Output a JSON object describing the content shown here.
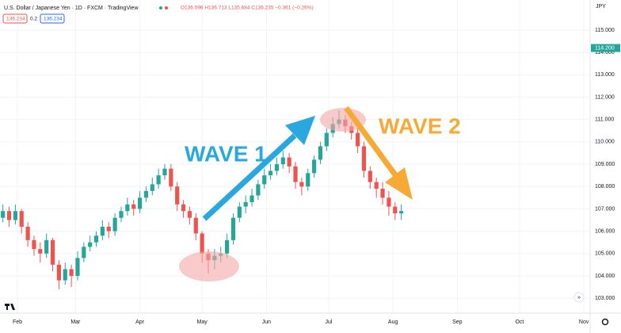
{
  "header": {
    "title": "U.S. Dollar / Japanese Yen · 1D · FXCM · TradingView",
    "ohlc": "O136.596 H136.713 L135.684 C136.235 −0.361 (−0.26%)",
    "sell": "136.234",
    "spread": "0.2",
    "buy": "136.234"
  },
  "chart_data": {
    "type": "candlestick",
    "currency": "JPY",
    "annotations": [
      "WAVE 1",
      "WAVE 2"
    ],
    "price_tag": {
      "value": 114.2,
      "label": "114.200"
    },
    "up_color": "#26a69a",
    "down_color": "#ef5350",
    "grid": true,
    "xlim": [
      -8.4,
      276
    ],
    "xticks": [
      {
        "value": 0,
        "label": "Feb"
      },
      {
        "value": 28,
        "label": "Mar"
      },
      {
        "value": 59,
        "label": "Apr"
      },
      {
        "value": 89,
        "label": "May"
      },
      {
        "value": 120,
        "label": "Jun"
      },
      {
        "value": 150,
        "label": "Jul"
      },
      {
        "value": 181,
        "label": "Aug"
      },
      {
        "value": 212,
        "label": "Sep"
      },
      {
        "value": 242,
        "label": "Oct"
      },
      {
        "value": 273,
        "label": "Nov"
      }
    ],
    "ylim": [
      102.33,
      116.35
    ],
    "yticks": [
      {
        "value": 103,
        "label": "103.000"
      },
      {
        "value": 104,
        "label": "104.000"
      },
      {
        "value": 105,
        "label": "105.000"
      },
      {
        "value": 106,
        "label": "106.000"
      },
      {
        "value": 107,
        "label": "107.000"
      },
      {
        "value": 108,
        "label": "108.000"
      },
      {
        "value": 109,
        "label": "109.000"
      },
      {
        "value": 110,
        "label": "110.000"
      },
      {
        "value": 111,
        "label": "111.000"
      },
      {
        "value": 112,
        "label": "112.000"
      },
      {
        "value": 113,
        "label": "113.000"
      },
      {
        "value": 114,
        "label": "114.000"
      },
      {
        "value": 115,
        "label": "115.000"
      }
    ],
    "x": [
      -7,
      -4,
      -1,
      2,
      5,
      8,
      11,
      14,
      17,
      20,
      23,
      26,
      29,
      32,
      35,
      38,
      41,
      44,
      47,
      50,
      53,
      56,
      59,
      62,
      65,
      68,
      71,
      74,
      77,
      80,
      83,
      86,
      89,
      92,
      95,
      98,
      101,
      104,
      107,
      110,
      113,
      116,
      119,
      122,
      125,
      128,
      131,
      134,
      137,
      140,
      143,
      146,
      149,
      152,
      155,
      158,
      161,
      164,
      167,
      170,
      173,
      176,
      179,
      182,
      185
    ],
    "open": [
      106.6,
      106.9,
      106.5,
      106.9,
      106.2,
      105.6,
      105.2,
      105.0,
      105.6,
      104.5,
      103.8,
      104.3,
      104.0,
      104.8,
      105.3,
      105.5,
      105.8,
      106.2,
      106.0,
      106.6,
      106.9,
      107.2,
      107.0,
      107.5,
      107.8,
      108.1,
      108.5,
      108.8,
      108.0,
      107.2,
      106.9,
      106.6,
      105.9,
      105.0,
      104.7,
      104.9,
      105.0,
      105.6,
      106.6,
      107.1,
      107.3,
      107.6,
      108.1,
      108.5,
      108.7,
      109.0,
      109.3,
      108.9,
      108.2,
      108.0,
      108.6,
      109.2,
      109.8,
      110.4,
      110.8,
      111.0,
      110.7,
      110.4,
      109.8,
      108.7,
      108.2,
      107.9,
      107.5,
      107.1,
      106.8
    ],
    "high": [
      107.2,
      107.1,
      107.2,
      107.0,
      106.4,
      105.8,
      105.5,
      105.9,
      105.7,
      104.7,
      104.6,
      104.5,
      105.1,
      105.5,
      105.8,
      106.0,
      106.5,
      106.4,
      106.8,
      107.1,
      107.5,
      107.4,
      107.8,
      108.0,
      108.4,
      108.8,
      109.0,
      109.0,
      108.2,
      107.4,
      107.1,
      106.8,
      106.0,
      105.2,
      105.2,
      105.3,
      105.9,
      106.8,
      107.3,
      107.6,
      107.9,
      108.3,
      108.8,
      109.0,
      109.3,
      109.6,
      109.5,
      109.1,
      108.4,
      108.8,
      109.4,
      110.0,
      110.6,
      111.1,
      111.4,
      111.2,
      110.9,
      110.6,
      110.0,
      108.9,
      108.4,
      108.2,
      107.8,
      107.3,
      107.2
    ],
    "low": [
      106.4,
      106.2,
      106.3,
      105.9,
      105.3,
      104.9,
      104.6,
      104.8,
      104.2,
      103.4,
      103.6,
      103.5,
      103.8,
      104.6,
      105.1,
      105.3,
      105.6,
      105.7,
      105.8,
      106.4,
      106.7,
      106.7,
      106.8,
      107.3,
      107.6,
      107.9,
      108.3,
      107.8,
      106.9,
      106.6,
      106.3,
      105.6,
      104.6,
      104.1,
      104.3,
      104.6,
      104.8,
      105.4,
      106.4,
      106.8,
      107.1,
      107.4,
      107.9,
      108.3,
      108.5,
      108.8,
      108.6,
      107.9,
      107.6,
      107.8,
      108.4,
      109.0,
      109.6,
      110.2,
      110.6,
      110.4,
      110.1,
      109.5,
      108.4,
      107.9,
      107.5,
      107.2,
      106.7,
      106.5,
      106.5
    ],
    "close": [
      106.9,
      106.5,
      106.9,
      106.2,
      105.6,
      105.2,
      105.0,
      105.6,
      104.5,
      103.8,
      104.3,
      104.0,
      104.8,
      105.3,
      105.5,
      105.8,
      106.2,
      106.0,
      106.6,
      106.9,
      107.2,
      107.0,
      107.5,
      107.8,
      108.1,
      108.5,
      108.8,
      108.0,
      107.2,
      106.9,
      106.6,
      105.9,
      105.0,
      104.7,
      104.9,
      105.0,
      105.6,
      106.6,
      107.1,
      107.3,
      107.6,
      108.1,
      108.5,
      108.7,
      109.0,
      109.3,
      108.9,
      108.2,
      108.0,
      108.6,
      109.2,
      109.8,
      110.4,
      110.8,
      111.0,
      110.7,
      110.4,
      109.8,
      108.7,
      108.2,
      107.9,
      107.5,
      107.1,
      106.8,
      106.9
    ]
  }
}
